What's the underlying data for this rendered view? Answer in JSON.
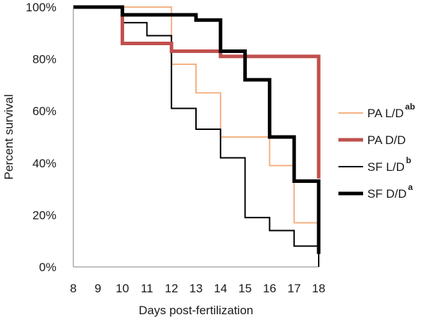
{
  "chart_data": {
    "type": "line",
    "step": true,
    "xlabel": "Days post-fertilization",
    "ylabel": "Percent survival",
    "xlim": [
      8,
      18
    ],
    "ylim": [
      0,
      100
    ],
    "x_ticks": [
      "8",
      "9",
      "10",
      "11",
      "12",
      "13",
      "14",
      "15",
      "16",
      "17",
      "18"
    ],
    "y_ticks": [
      "0%",
      "20%",
      "40%",
      "60%",
      "80%",
      "100%"
    ],
    "grid": false,
    "legend_position": "right",
    "series": [
      {
        "name": "PA L/D",
        "superscript": "ab",
        "color": "#f4b183",
        "line_weight": "thin",
        "points": [
          [
            8,
            100
          ],
          [
            11,
            100
          ],
          [
            12,
            78
          ],
          [
            13,
            67
          ],
          [
            14,
            50
          ],
          [
            16,
            39
          ],
          [
            17,
            17
          ],
          [
            18,
            0
          ]
        ]
      },
      {
        "name": "PA D/D",
        "superscript": "",
        "color": "#c0504d",
        "line_weight": "thick",
        "points": [
          [
            8,
            100
          ],
          [
            10,
            86
          ],
          [
            12,
            83
          ],
          [
            14,
            81
          ],
          [
            18,
            34
          ]
        ]
      },
      {
        "name": "SF L/D",
        "superscript": "b",
        "color": "#000000",
        "line_weight": "thin",
        "points": [
          [
            8,
            100
          ],
          [
            10,
            94
          ],
          [
            11,
            89
          ],
          [
            12,
            61
          ],
          [
            13,
            53
          ],
          [
            14,
            42
          ],
          [
            15,
            19
          ],
          [
            16,
            14
          ],
          [
            17,
            8
          ],
          [
            18,
            0
          ]
        ]
      },
      {
        "name": "SF D/D",
        "superscript": "a",
        "color": "#000000",
        "line_weight": "thick",
        "points": [
          [
            8,
            100
          ],
          [
            10,
            97
          ],
          [
            13,
            95
          ],
          [
            14,
            83
          ],
          [
            15,
            72
          ],
          [
            16,
            50
          ],
          [
            17,
            33
          ],
          [
            18,
            5
          ]
        ]
      }
    ]
  }
}
